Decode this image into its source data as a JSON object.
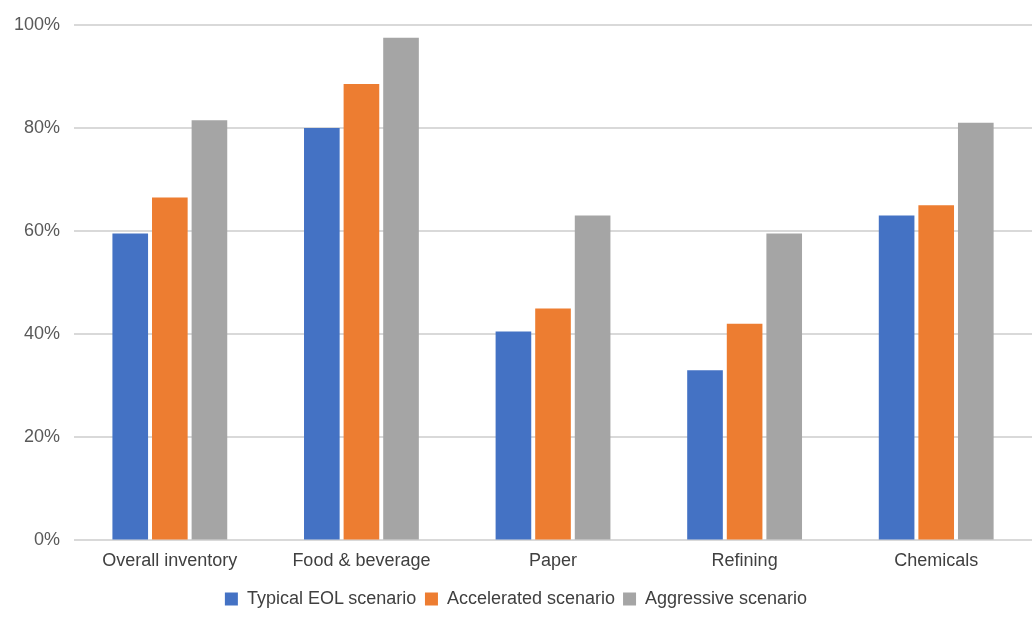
{
  "chart_data": {
    "type": "bar",
    "categories": [
      "Overall inventory",
      "Food & beverage",
      "Paper",
      "Refining",
      "Chemicals"
    ],
    "series": [
      {
        "name": "Typical EOL scenario",
        "color": "#4472c4",
        "values": [
          59.5,
          80,
          40.5,
          33,
          63
        ]
      },
      {
        "name": "Accelerated scenario",
        "color": "#ed7d31",
        "values": [
          66.5,
          88.5,
          45,
          42,
          65
        ]
      },
      {
        "name": "Aggressive scenario",
        "color": "#a5a5a5",
        "values": [
          81.5,
          97.5,
          63,
          59.5,
          81
        ]
      }
    ],
    "ylim": [
      0,
      100
    ],
    "yticks": [
      {
        "value": 0,
        "label": "0%"
      },
      {
        "value": 20,
        "label": "20%"
      },
      {
        "value": 40,
        "label": "40%"
      },
      {
        "value": 60,
        "label": "60%"
      },
      {
        "value": 80,
        "label": "80%"
      },
      {
        "value": 100,
        "label": "100%"
      }
    ],
    "grid": "y",
    "legend": "bottom"
  }
}
